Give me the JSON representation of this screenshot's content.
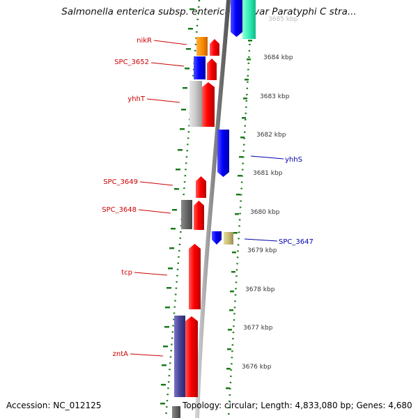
{
  "title": "Salmonella enterica subsp. enterica serovar Paratyphi C stra...",
  "accession": "Accession: NC_012125",
  "summary": "Topology: circular; Length: 4,833,080 bp; Genes: 4,680",
  "colors": {
    "label_left": "#cc0000",
    "label_right": "#0000aa",
    "ticks": "#1a7a1a",
    "axis": "#8a8a8a"
  },
  "scale_labels": [
    "3685 kbp",
    "3684 kbp",
    "3683 kbp",
    "3682 kbp",
    "3681 kbp",
    "3680 kbp",
    "3679 kbp",
    "3678 kbp",
    "3677 kbp",
    "3676 kbp"
  ],
  "left_labels": [
    "nikR",
    "SPC_3652",
    "yhhT",
    "SPC_3649",
    "SPC_3648",
    "tcp",
    "zntA"
  ],
  "right_labels": [
    "yhhS",
    "SPC_3647"
  ]
}
